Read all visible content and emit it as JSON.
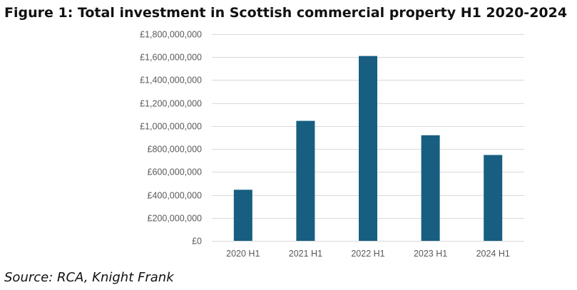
{
  "figure_title": "Figure 1: Total investment in Scottish commercial property H1 2020-2024",
  "source_note": "Source: RCA, Knight Frank",
  "colors": {
    "bar": "#175e80",
    "grid": "#d9d9d9",
    "tick_text": "#595959"
  },
  "chart_data": {
    "type": "bar",
    "title": "Figure 1: Total investment in Scottish commercial property H1 2020-2024",
    "categories": [
      "2020 H1",
      "2021 H1",
      "2022 H1",
      "2023 H1",
      "2024 H1"
    ],
    "values": [
      445000000,
      1045000000,
      1610000000,
      920000000,
      748000000
    ],
    "ylim": [
      0,
      1800000000
    ],
    "yticks": [
      0,
      200000000,
      400000000,
      600000000,
      800000000,
      1000000000,
      1200000000,
      1400000000,
      1600000000,
      1800000000
    ],
    "ytick_labels": [
      "£0",
      "£200,000,000",
      "£400,000,000",
      "£600,000,000",
      "£800,000,000",
      "£1,000,000,000",
      "£1,200,000,000",
      "£1,400,000,000",
      "£1,600,000,000",
      "£1,800,000,000"
    ],
    "xlabel": "",
    "ylabel": "",
    "grid": true,
    "legend": false
  }
}
